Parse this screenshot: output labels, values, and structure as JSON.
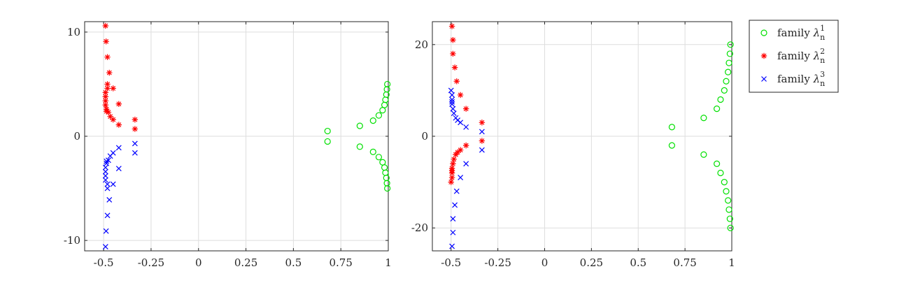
{
  "legend": {
    "entries": [
      {
        "prefix": "family ",
        "sym": "λ",
        "sub": "n",
        "sup": "1",
        "marker": "circle",
        "color": "#00e000"
      },
      {
        "prefix": "family ",
        "sym": "λ",
        "sub": "n",
        "sup": "2",
        "marker": "asterisk",
        "color": "#ff0000"
      },
      {
        "prefix": "family ",
        "sym": "λ",
        "sub": "n",
        "sup": "3",
        "marker": "cross",
        "color": "#0000ff"
      }
    ]
  },
  "chart_data": [
    {
      "type": "scatter",
      "title": "",
      "xlabel": "",
      "ylabel": "",
      "xlim": [
        -0.6,
        1.0
      ],
      "ylim": [
        -11,
        11
      ],
      "grid": true,
      "xticks": [
        -0.5,
        -0.25,
        0,
        0.25,
        0.5,
        0.75,
        1
      ],
      "xtick_labels": [
        "-0.5",
        "-0.25",
        "0",
        "0.25",
        "0.5",
        "0.75",
        "1"
      ],
      "yticks": [
        -10,
        0,
        10
      ],
      "ytick_labels": [
        "-10",
        "0",
        "10"
      ],
      "series": [
        {
          "marker": "circle",
          "color": "#00e000",
          "x": [
            0.68,
            0.68,
            0.85,
            0.85,
            0.92,
            0.92,
            0.95,
            0.95,
            0.97,
            0.97,
            0.98,
            0.98,
            0.985,
            0.985,
            0.99,
            0.99,
            0.993,
            0.993,
            0.995,
            0.995
          ],
          "y": [
            0.5,
            -0.5,
            1.0,
            -1.0,
            1.5,
            -1.5,
            2.0,
            -2.0,
            2.5,
            -2.5,
            3.0,
            -3.0,
            3.5,
            -3.5,
            4.0,
            -4.0,
            4.5,
            -4.5,
            5.0,
            -5.0
          ]
        },
        {
          "marker": "asterisk",
          "color": "#ff0000",
          "x": [
            -0.335,
            -0.335,
            -0.42,
            -0.42,
            -0.45,
            -0.45,
            -0.465,
            -0.47,
            -0.475,
            -0.48,
            -0.485,
            -0.487,
            -0.49,
            -0.49,
            -0.49,
            -0.49,
            -0.49,
            -0.48,
            -0.48,
            -0.485
          ],
          "y": [
            0.7,
            1.6,
            1.1,
            3.1,
            1.6,
            4.6,
            1.9,
            6.1,
            2.3,
            7.6,
            2.6,
            9.1,
            3.0,
            10.6,
            3.4,
            3.8,
            4.2,
            4.6,
            5.0,
            2.4
          ]
        },
        {
          "marker": "cross",
          "color": "#0000ff",
          "x": [
            -0.335,
            -0.335,
            -0.42,
            -0.42,
            -0.45,
            -0.45,
            -0.465,
            -0.47,
            -0.475,
            -0.48,
            -0.485,
            -0.487,
            -0.49,
            -0.49,
            -0.49,
            -0.49,
            -0.49,
            -0.48,
            -0.48,
            -0.485
          ],
          "y": [
            -0.7,
            -1.6,
            -1.1,
            -3.1,
            -1.6,
            -4.6,
            -1.9,
            -6.1,
            -2.3,
            -7.6,
            -2.6,
            -9.1,
            -3.0,
            -10.6,
            -3.4,
            -3.8,
            -4.2,
            -4.6,
            -5.0,
            -2.4
          ]
        }
      ]
    },
    {
      "type": "scatter",
      "title": "",
      "xlabel": "",
      "ylabel": "",
      "xlim": [
        -0.6,
        1.0
      ],
      "ylim": [
        -25,
        25
      ],
      "grid": true,
      "xticks": [
        -0.5,
        -0.25,
        0,
        0.25,
        0.5,
        0.75,
        1
      ],
      "xtick_labels": [
        "-0.5",
        "-0.25",
        "0",
        "0.25",
        "0.5",
        "0.75",
        "1"
      ],
      "yticks": [
        -20,
        0,
        20
      ],
      "ytick_labels": [
        "-20",
        "0",
        "20"
      ],
      "series": [
        {
          "marker": "circle",
          "color": "#00e000",
          "x": [
            0.68,
            0.68,
            0.85,
            0.85,
            0.92,
            0.92,
            0.94,
            0.94,
            0.96,
            0.96,
            0.97,
            0.97,
            0.98,
            0.98,
            0.985,
            0.985,
            0.99,
            0.99,
            0.993,
            0.993
          ],
          "y": [
            2,
            -2,
            4,
            -4,
            6,
            -6,
            8,
            -8,
            10,
            -10,
            12,
            -12,
            14,
            -14,
            16,
            -16,
            18,
            -18,
            20,
            -20
          ]
        },
        {
          "marker": "asterisk",
          "color": "#ff0000",
          "x": [
            -0.335,
            -0.335,
            -0.42,
            -0.42,
            -0.45,
            -0.45,
            -0.465,
            -0.47,
            -0.475,
            -0.48,
            -0.485,
            -0.49,
            -0.49,
            -0.49,
            -0.495,
            -0.495,
            -0.495,
            -0.495,
            -0.495,
            -0.5
          ],
          "y": [
            -1,
            3,
            -2,
            6,
            -3,
            9,
            -3.5,
            12,
            -4,
            15,
            -5,
            18,
            -6,
            21,
            -7,
            24,
            -7.5,
            -8,
            -9,
            -10
          ]
        },
        {
          "marker": "cross",
          "color": "#0000ff",
          "x": [
            -0.335,
            -0.335,
            -0.42,
            -0.42,
            -0.45,
            -0.45,
            -0.465,
            -0.47,
            -0.475,
            -0.48,
            -0.485,
            -0.49,
            -0.49,
            -0.49,
            -0.495,
            -0.495,
            -0.495,
            -0.495,
            -0.495,
            -0.5
          ],
          "y": [
            1,
            -3,
            2,
            -6,
            3,
            -9,
            3.5,
            -12,
            4,
            -15,
            5,
            -18,
            6,
            -21,
            7,
            -24,
            7.5,
            8,
            9,
            10
          ]
        }
      ]
    }
  ]
}
